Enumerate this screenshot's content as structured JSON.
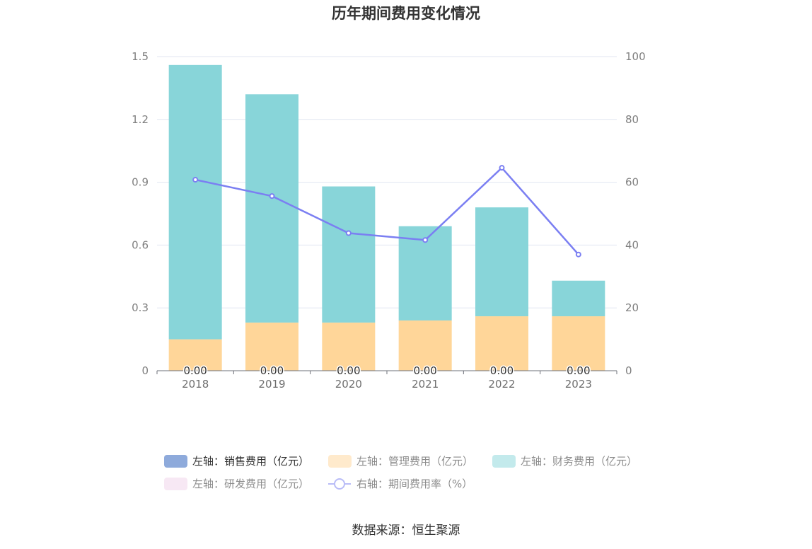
{
  "chart_data": {
    "type": "bar",
    "title": "历年期间费用变化情况",
    "categories": [
      "2018",
      "2019",
      "2020",
      "2021",
      "2022",
      "2023"
    ],
    "stacked": true,
    "left_axis": {
      "ylim": [
        0,
        1.5
      ],
      "ticks": [
        "0",
        "0.3",
        "0.6",
        "0.9",
        "1.2",
        "1.5"
      ]
    },
    "right_axis": {
      "ylim": [
        0,
        100
      ],
      "ticks": [
        "0",
        "20",
        "40",
        "60",
        "80",
        "100"
      ]
    },
    "grid": true,
    "series": [
      {
        "name": "左轴：销售费用（亿元）",
        "axis": "left",
        "type": "bar",
        "color": "#8eaadb",
        "values": [
          0,
          0,
          0,
          0,
          0,
          0
        ],
        "data_labels": [
          "0.00",
          "0.00",
          "0.00",
          "0.00",
          "0.00",
          "0.00"
        ]
      },
      {
        "name": "左轴：管理费用（亿元）",
        "axis": "left",
        "type": "bar",
        "color": "#ffd699",
        "values": [
          0.15,
          0.23,
          0.23,
          0.24,
          0.26,
          0.26
        ]
      },
      {
        "name": "左轴：财务费用（亿元）",
        "axis": "left",
        "type": "bar",
        "color": "#88d5d9",
        "values": [
          1.31,
          1.09,
          0.65,
          0.45,
          0.52,
          0.17
        ]
      },
      {
        "name": "左轴：研发费用（亿元）",
        "axis": "left",
        "type": "bar",
        "color": "#f0d2ea",
        "values": [
          0,
          0,
          0,
          0,
          0,
          0
        ]
      },
      {
        "name": "右轴：期间费用率（%）",
        "axis": "right",
        "type": "line",
        "color": "#7b7ff2",
        "values": [
          60.8,
          55.6,
          43.8,
          41.6,
          64.6,
          37.0
        ]
      }
    ],
    "legend": {
      "placement": "bottom"
    },
    "source": "数据来源：恒生聚源"
  }
}
